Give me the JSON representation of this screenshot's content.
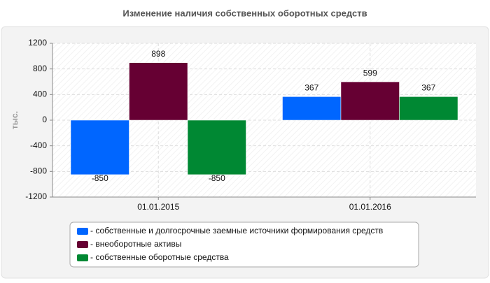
{
  "chart_data": {
    "type": "bar",
    "title": "Изменение наличия собственных оборотных средств",
    "y_label": "тыс.",
    "categories": [
      "01.01.2015",
      "01.01.2016"
    ],
    "series": [
      {
        "name": "- собственные и долгосрочные заемные источники формирования средств",
        "color": "#0066ff",
        "values": [
          -850,
          367
        ]
      },
      {
        "name": "- внеоборотные активы",
        "color": "#660033",
        "values": [
          898,
          599
        ]
      },
      {
        "name": "- собственные оборотные средства",
        "color": "#008833",
        "values": [
          -850,
          367
        ]
      }
    ],
    "ylim": [
      -1200,
      1200
    ],
    "yticks": [
      -1200,
      -800,
      -400,
      0,
      400,
      800,
      1200
    ],
    "grid": true
  }
}
